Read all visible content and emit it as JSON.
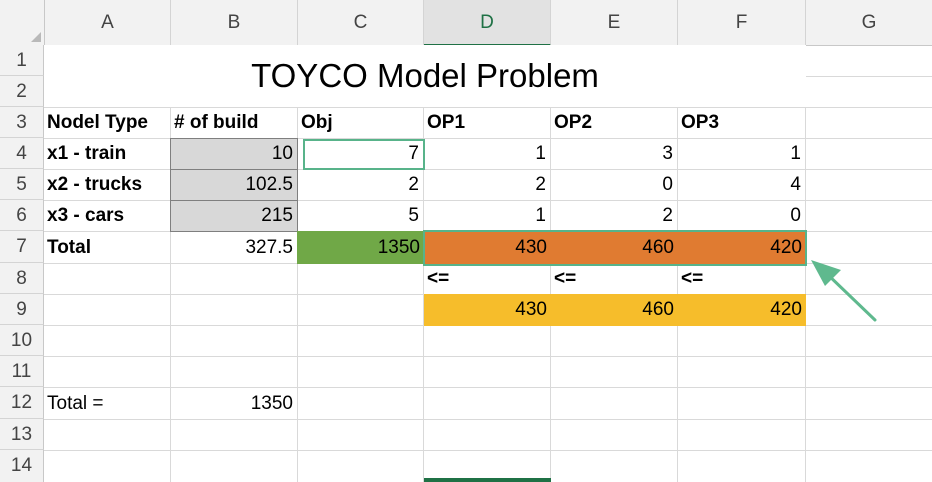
{
  "columns": [
    "A",
    "B",
    "C",
    "D",
    "E",
    "F",
    "G"
  ],
  "rows": [
    "1",
    "2",
    "3",
    "4",
    "5",
    "6",
    "7",
    "8",
    "9",
    "10",
    "11",
    "12",
    "13",
    "14"
  ],
  "title": "TOYCO Model Problem",
  "headers": {
    "a": "Nodel Type",
    "b": "# of build",
    "c": "Obj",
    "d": "OP1",
    "e": "OP2",
    "f": "OP3"
  },
  "r4": {
    "a": "x1 - train",
    "b": "10",
    "c": "7",
    "d": "1",
    "e": "3",
    "f": "1"
  },
  "r5": {
    "a": "x2 - trucks",
    "b": "102.5",
    "c": "2",
    "d": "2",
    "e": "0",
    "f": "4"
  },
  "r6": {
    "a": "x3 - cars",
    "b": "215",
    "c": "5",
    "d": "1",
    "e": "2",
    "f": "0"
  },
  "r7": {
    "a": "Total",
    "b": "327.5",
    "c": "1350",
    "d": "430",
    "e": "460",
    "f": "420"
  },
  "r8": {
    "d": "<=",
    "e": "<=",
    "f": "<="
  },
  "r9": {
    "d": "430",
    "e": "460",
    "f": "420"
  },
  "r12": {
    "a": "Total =",
    "b": "1350"
  },
  "colors": {
    "green_fill": "#70a847",
    "orange_fill": "#e07b31",
    "yellow_fill": "#f6bd2b",
    "gray_fill": "#d8d8d8",
    "selection": "#58b38a",
    "arrow": "#5fb98e"
  }
}
